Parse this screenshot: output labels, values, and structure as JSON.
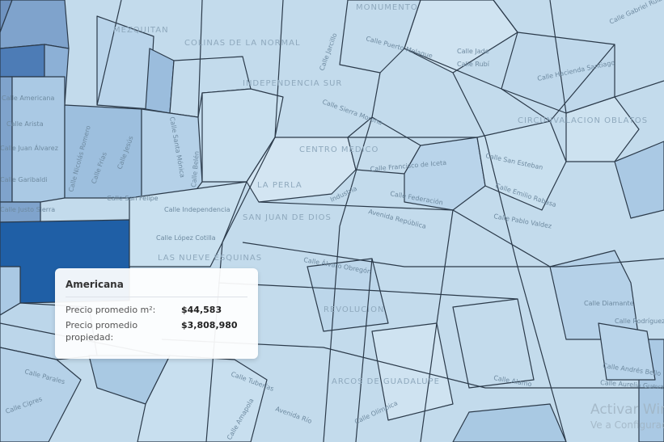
{
  "map": {
    "neighborhoods": [
      "MONUMENTO",
      "MEZQUITAN",
      "COLINAS DE LA NORMAL",
      "INDEPENDENCIA SUR",
      "CIRCUNVALACION OBLATOS",
      "LA PERLA",
      "SAN JUAN DE DIOS",
      "LAS NUEVE ESQUINAS",
      "REVOLUCION",
      "CENTRO MEDICO",
      "ARCOS DE GUADALUPE"
    ],
    "streets": [
      "Calle Jade",
      "Calle Rubí",
      "Calle Puerto Melaque",
      "Calle Hacienda Santiago",
      "Calle Sierra Morena",
      "Calle Jarcillo",
      "Calle San Felipe",
      "Calle Independencia",
      "Calle López Cotilla",
      "Calle Arista",
      "Calle Juan Álvarez",
      "Calle Garibaldi",
      "Calle Justo Sierra",
      "Calle Federación",
      "Avenida República",
      "Calle Pablo Valdez",
      "Calle Emilio Rabasa",
      "Calle Álvaro Obregón",
      "Industria",
      "Calle Andrés Bello",
      "Calle Aurelia Guevara",
      "Calle Tuberías",
      "Calle Amapola",
      "Calle Olímpica",
      "Calle Parales",
      "Calle Cipres",
      "Calle Americana",
      "Calle Jesús",
      "Calle Frías",
      "Calle Nicolás Romero",
      "Calle Santa Mónica",
      "Calle Belén",
      "Calle Francisco de Iceta",
      "Calle San Esteban",
      "Calle Diamante",
      "Calle Rodríguez",
      "Avenida Río",
      "Calle Gabriel Ruiz",
      "Calle Alamo"
    ]
  },
  "tooltip": {
    "title": "Americana",
    "rows": [
      {
        "label": "Precio promedio m²:",
        "value": "$44,583"
      },
      {
        "label": "Precio promedio propiedad:",
        "value": "$3,808,980"
      }
    ]
  },
  "watermark": {
    "line1": "Activar Windows",
    "line2": "Ve a Configuración"
  },
  "colors": {
    "base": "#c3dbec",
    "light": "#d3e5f2",
    "mid": "#a9c9e3",
    "dark": "#1f5fa6",
    "border": "#2b3a4a"
  }
}
